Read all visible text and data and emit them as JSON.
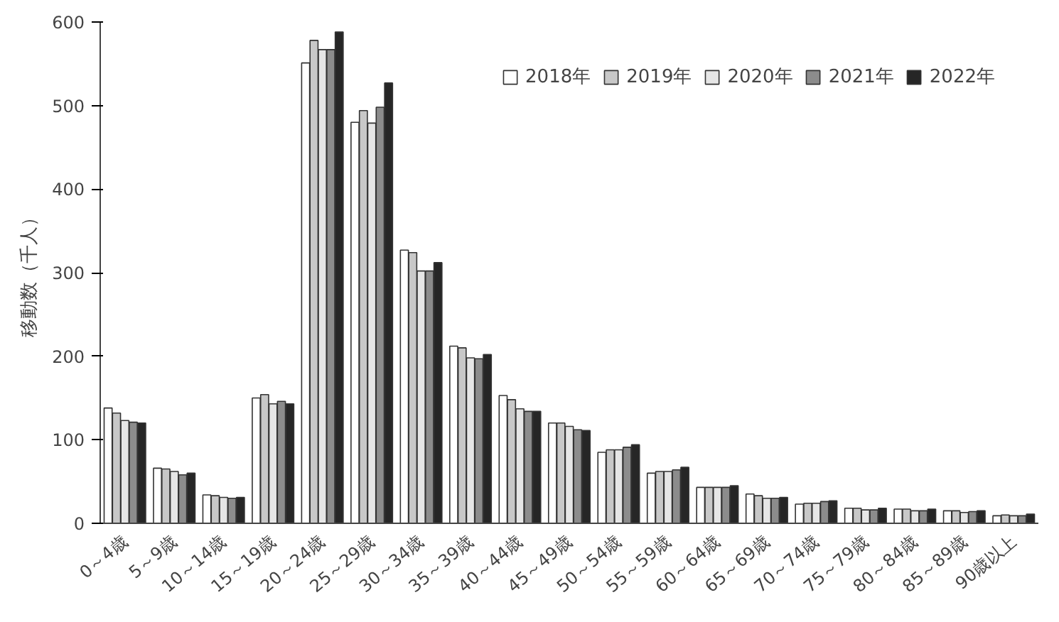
{
  "chart_data": {
    "type": "bar",
    "ylabel": "移動数（千人）",
    "categories": [
      "0～4歳",
      "5～9歳",
      "10～14歳",
      "15～19歳",
      "20～24歳",
      "25～29歳",
      "30～34歳",
      "35～39歳",
      "40～44歳",
      "45～49歳",
      "50～54歳",
      "55～59歳",
      "60～64歳",
      "65～69歳",
      "70～74歳",
      "75～79歳",
      "80～84歳",
      "85～89歳",
      "90歳以上"
    ],
    "series": [
      {
        "name": "2018年",
        "color": "#ffffff",
        "values": [
          138,
          66,
          34,
          150,
          551,
          480,
          327,
          212,
          153,
          120,
          85,
          60,
          43,
          35,
          23,
          18,
          17,
          15,
          9
        ]
      },
      {
        "name": "2019年",
        "color": "#c8c8c8",
        "values": [
          132,
          65,
          33,
          154,
          578,
          494,
          324,
          210,
          148,
          120,
          88,
          62,
          43,
          33,
          24,
          18,
          17,
          15,
          10
        ]
      },
      {
        "name": "2020年",
        "color": "#e6e6e6",
        "values": [
          123,
          62,
          31,
          143,
          567,
          479,
          302,
          198,
          137,
          116,
          88,
          62,
          43,
          30,
          24,
          16,
          15,
          13,
          9
        ]
      },
      {
        "name": "2021年",
        "color": "#8c8c8c",
        "values": [
          121,
          58,
          30,
          146,
          567,
          498,
          302,
          197,
          134,
          112,
          91,
          64,
          43,
          30,
          26,
          16,
          15,
          14,
          9
        ]
      },
      {
        "name": "2022年",
        "color": "#262626",
        "values": [
          120,
          60,
          31,
          143,
          588,
          527,
          312,
          202,
          134,
          111,
          94,
          67,
          45,
          31,
          27,
          18,
          17,
          15,
          11
        ]
      }
    ],
    "ylim": [
      0,
      600
    ],
    "yticks": [
      0,
      100,
      200,
      300,
      400,
      500,
      600
    ],
    "grid": false,
    "legend": "top right"
  }
}
